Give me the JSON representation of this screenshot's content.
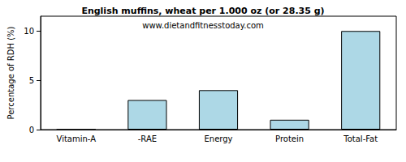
{
  "chart_data": {
    "type": "bar",
    "title": "English muffins, wheat per 1.000 oz (or 28.35 g)",
    "subtitle": "www.dietandfitnesstoday.com",
    "ylabel": "Percentage of RDH (%)",
    "categories": [
      "Vitamin-A",
      "-RAE",
      "Energy",
      "Protein",
      "Total-Fat"
    ],
    "values": [
      0,
      3,
      4,
      1,
      10
    ],
    "color": "#add8e6",
    "ylim": [
      0,
      11.5
    ],
    "yticks": [
      0,
      5,
      10
    ],
    "grid": false
  }
}
